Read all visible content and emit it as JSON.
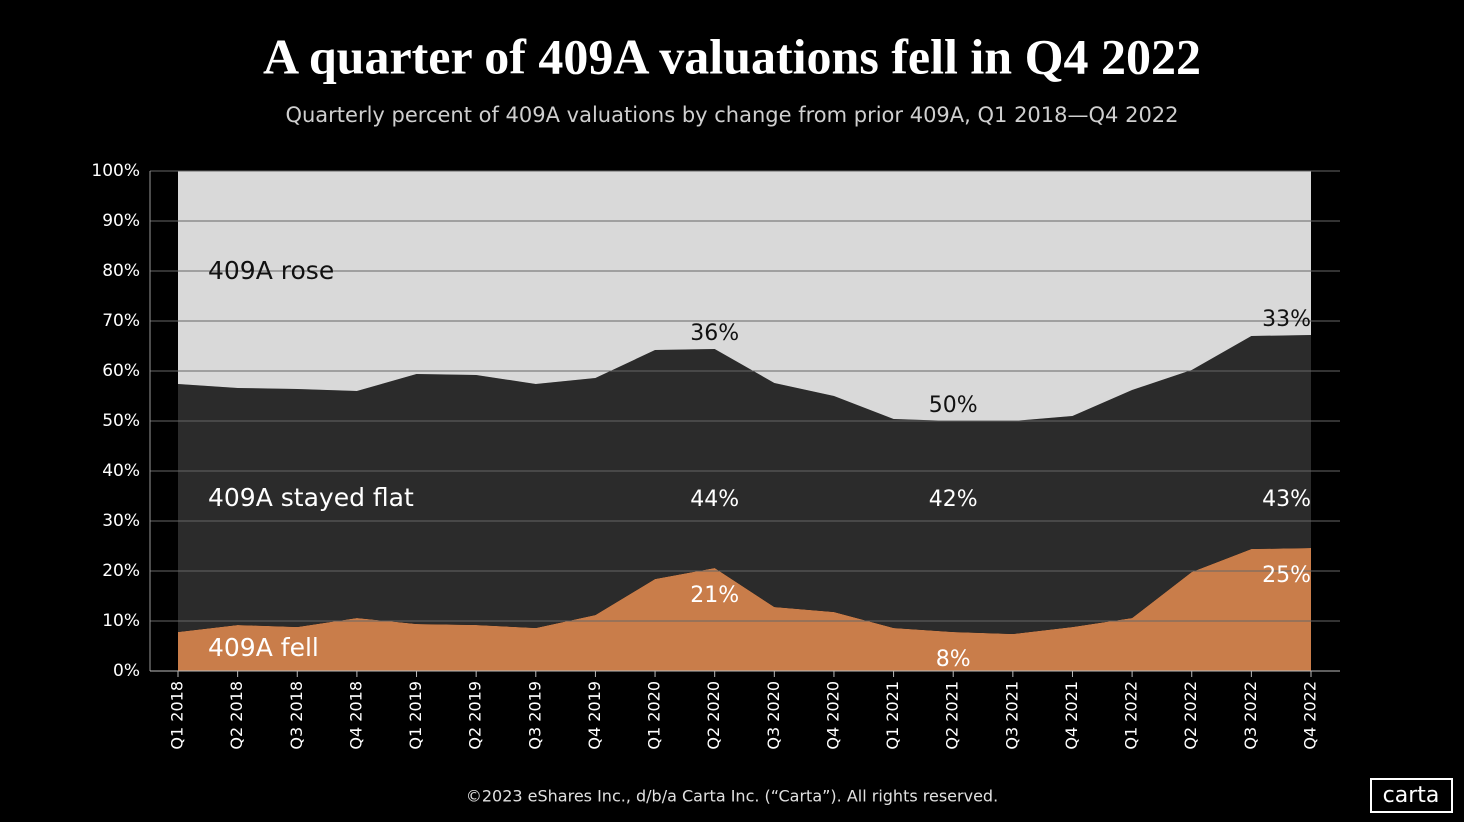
{
  "chart_data": {
    "type": "stacked_area",
    "title": "A quarter of 409A valuations fell in Q4 2022",
    "subtitle": "Quarterly percent of 409A valuations by change from prior 409A, Q1 2018—Q4 2022",
    "categories": [
      "Q1 2018",
      "Q2 2018",
      "Q3 2018",
      "Q4 2018",
      "Q1 2019",
      "Q2 2019",
      "Q3 2019",
      "Q4 2019",
      "Q1 2020",
      "Q2 2020",
      "Q3 2020",
      "Q4 2020",
      "Q1 2021",
      "Q2 2021",
      "Q3 2021",
      "Q4 2021",
      "Q1 2022",
      "Q2 2022",
      "Q3 2022",
      "Q4 2022"
    ],
    "series": [
      {
        "name": "409A fell",
        "color": "#c97d4a",
        "text_color": "#ffffff",
        "values": [
          7.8,
          9.2,
          8.8,
          10.6,
          9.4,
          9.2,
          8.6,
          11.2,
          18.4,
          20.6,
          12.8,
          11.8,
          8.6,
          7.8,
          7.4,
          8.8,
          10.6,
          19.8,
          24.4,
          24.6
        ],
        "value_labels": [
          null,
          null,
          null,
          null,
          null,
          null,
          null,
          null,
          null,
          "21%",
          null,
          null,
          null,
          "8%",
          null,
          null,
          null,
          null,
          null,
          "25%"
        ]
      },
      {
        "name": "409A stayed flat",
        "color": "#2b2b2b",
        "text_color": "#ffffff",
        "values": [
          49.6,
          47.4,
          47.6,
          45.4,
          50,
          50,
          48.8,
          47.4,
          45.8,
          43.8,
          44.8,
          43.2,
          41.8,
          42.2,
          42.6,
          42.2,
          45.6,
          40.4,
          42.6,
          42.6
        ],
        "value_labels": [
          null,
          null,
          null,
          null,
          null,
          null,
          null,
          null,
          null,
          "44%",
          null,
          null,
          null,
          "42%",
          null,
          null,
          null,
          null,
          null,
          "43%"
        ]
      },
      {
        "name": "409A rose",
        "color": "#d9d9d9",
        "text_color": "#111111",
        "values": [
          42.6,
          43.4,
          43.6,
          44,
          40.6,
          40.8,
          42.6,
          41.4,
          35.8,
          35.6,
          42.4,
          45,
          49.6,
          50,
          50,
          49,
          43.8,
          39.8,
          33,
          32.8
        ],
        "value_labels": [
          null,
          null,
          null,
          null,
          null,
          null,
          null,
          null,
          null,
          "36%",
          null,
          null,
          null,
          "50%",
          null,
          null,
          null,
          null,
          null,
          "33%"
        ]
      }
    ],
    "ylim": [
      0,
      100
    ],
    "yticks": [
      {
        "value": 0,
        "label": "0%"
      },
      {
        "value": 10,
        "label": "10%"
      },
      {
        "value": 20,
        "label": "20%"
      },
      {
        "value": 30,
        "label": "30%"
      },
      {
        "value": 40,
        "label": "40%"
      },
      {
        "value": 50,
        "label": "50%"
      },
      {
        "value": 60,
        "label": "60%"
      },
      {
        "value": 70,
        "label": "70%"
      },
      {
        "value": 80,
        "label": "80%"
      },
      {
        "value": 90,
        "label": "90%"
      },
      {
        "value": 100,
        "label": "100%"
      }
    ],
    "grid": true,
    "footer": "©2023 eShares Inc., d/b/a Carta Inc. (“Carta”). All rights reserved.",
    "logo": "carta"
  }
}
